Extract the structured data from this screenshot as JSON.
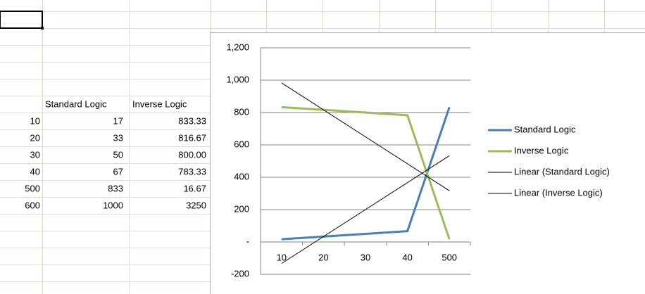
{
  "table": {
    "header": [
      "Standard Logic",
      "Inverse Logic"
    ],
    "rows": [
      [
        "10",
        "17",
        "833.33"
      ],
      [
        "20",
        "33",
        "816.67"
      ],
      [
        "30",
        "50",
        "800.00"
      ],
      [
        "40",
        "67",
        "783.33"
      ],
      [
        "500",
        "833",
        "16.67"
      ],
      [
        "600",
        "1000",
        "3250"
      ]
    ]
  },
  "chart_data": {
    "type": "line",
    "categories": [
      "10",
      "20",
      "30",
      "40",
      "500"
    ],
    "series": [
      {
        "name": "Standard Logic",
        "color": "#4a7ebb",
        "values": [
          17,
          33,
          50,
          67,
          833
        ]
      },
      {
        "name": "Inverse Logic",
        "color": "#9bbb59",
        "values": [
          833.33,
          816.67,
          800,
          783.33,
          16.67
        ]
      },
      {
        "name": "Linear (Standard Logic)",
        "color": "#000000",
        "trendline": "linear",
        "source": 0
      },
      {
        "name": "Linear (Inverse Logic)",
        "color": "#000000",
        "trendline": "linear",
        "source": 1
      }
    ],
    "ylim": [
      -200,
      1200
    ],
    "yticks": [
      -200,
      {
        "value": 0,
        "label": "-"
      },
      200,
      400,
      600,
      800,
      {
        "value": 1000,
        "label": "1,000"
      },
      {
        "value": 1200,
        "label": "1,200"
      }
    ],
    "grid": true,
    "legend": "right"
  }
}
